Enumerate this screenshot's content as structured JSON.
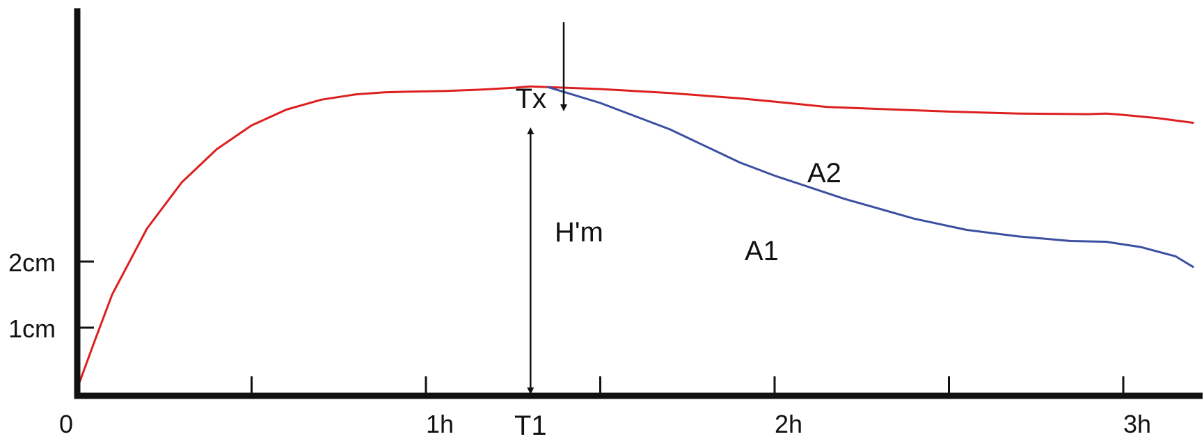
{
  "chart_data": {
    "type": "line",
    "xlabel": "",
    "ylabel": "",
    "xlim": [
      0,
      3.2
    ],
    "ylim": [
      0,
      6
    ],
    "x_ticks": [
      {
        "value": 0,
        "label": "0"
      },
      {
        "value": 0.5,
        "label": ""
      },
      {
        "value": 1,
        "label": "1h"
      },
      {
        "value": 1.5,
        "label": ""
      },
      {
        "value": 2,
        "label": "2h"
      },
      {
        "value": 2.5,
        "label": ""
      },
      {
        "value": 3,
        "label": "3h"
      }
    ],
    "y_ticks": [
      {
        "value": 1,
        "label": "1cm"
      },
      {
        "value": 2,
        "label": "2cm"
      }
    ],
    "series": [
      {
        "name": "A2",
        "color": "#dd1f1f",
        "x": [
          0,
          0.05,
          0.1,
          0.2,
          0.3,
          0.4,
          0.5,
          0.6,
          0.7,
          0.8,
          0.88,
          0.95,
          1.05,
          1.15,
          1.25,
          1.3,
          1.35,
          1.5,
          1.7,
          1.9,
          2.0,
          2.15,
          2.3,
          2.5,
          2.7,
          2.9,
          2.95,
          3.0,
          3.1,
          3.2
        ],
        "y": [
          0.08,
          0.8,
          1.5,
          2.5,
          3.2,
          3.7,
          4.06,
          4.3,
          4.45,
          4.53,
          4.56,
          4.57,
          4.58,
          4.6,
          4.63,
          4.65,
          4.64,
          4.61,
          4.55,
          4.47,
          4.42,
          4.34,
          4.31,
          4.27,
          4.24,
          4.23,
          4.24,
          4.22,
          4.17,
          4.1
        ]
      },
      {
        "name": "A1",
        "color": "#3a4fa0",
        "x": [
          1.35,
          1.5,
          1.7,
          1.9,
          2.0,
          2.2,
          2.4,
          2.55,
          2.7,
          2.85,
          2.95,
          3.05,
          3.15,
          3.2
        ],
        "y": [
          4.64,
          4.4,
          4.0,
          3.5,
          3.3,
          2.95,
          2.65,
          2.48,
          2.38,
          2.31,
          2.3,
          2.22,
          2.08,
          1.92
        ]
      }
    ],
    "annotations": [
      {
        "id": "tx",
        "text": "Tx",
        "x": 1.35,
        "y": 4.64,
        "arrow": "down"
      },
      {
        "id": "hm",
        "text": "H'm",
        "x": 1.3,
        "y_from": 0,
        "y_to": 4.1,
        "arrow": "double-vertical"
      },
      {
        "id": "t1",
        "text": "T1",
        "x": 1.3
      }
    ]
  }
}
